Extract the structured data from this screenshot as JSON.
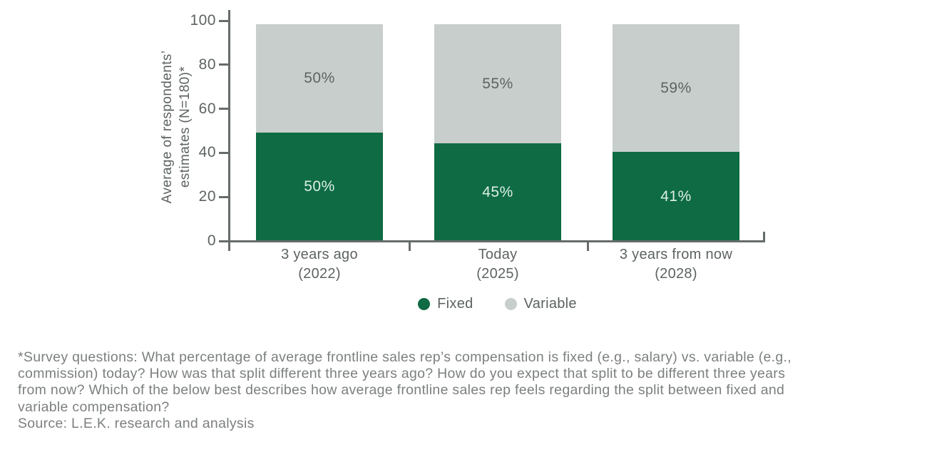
{
  "chart_data": {
    "type": "bar",
    "stacked": true,
    "categories": [
      {
        "label": "3 years ago",
        "sublabel": "(2022)"
      },
      {
        "label": "Today",
        "sublabel": "(2025)"
      },
      {
        "label": "3 years from now",
        "sublabel": "(2028)"
      }
    ],
    "series": [
      {
        "name": "Fixed",
        "color": "#0e6b44",
        "label_color": "#ddefe5",
        "values": [
          50,
          45,
          41
        ]
      },
      {
        "name": "Variable",
        "color": "#c8cecb",
        "label_color": "#5e6462",
        "values": [
          50,
          55,
          59
        ]
      }
    ],
    "value_suffix": "%",
    "ylabel_lines": [
      "Average of respondents’",
      "estimates (N=180)*"
    ],
    "yticks": [
      0,
      20,
      40,
      60,
      80,
      100
    ],
    "ylim": [
      0,
      100
    ],
    "grid": false,
    "legend_position": "bottom"
  },
  "footnote": {
    "lines": [
      "*Survey questions: What percentage of average frontline sales rep’s compensation is fixed (e.g., salary) vs. variable (e.g.,",
      "commission) today? How was that split different three years ago? How do you expect that split to be different three years",
      "from now? Which of the below best describes how average frontline sales rep feels regarding the split between fixed and",
      "variable compensation?"
    ],
    "source": "Source: L.E.K. research and analysis"
  }
}
